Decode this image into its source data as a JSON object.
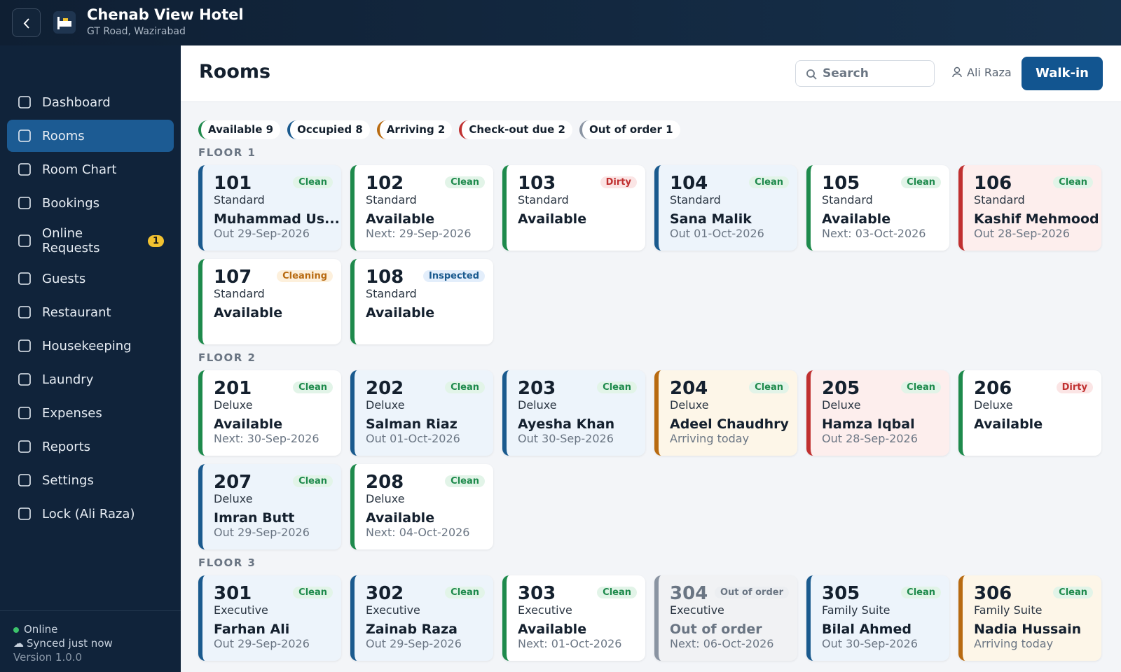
{
  "header": {
    "title": "Chenab View Hotel",
    "subtitle": "GT Road, Wazirabad"
  },
  "sidebar": {
    "nav": [
      {
        "label": "Dashboard"
      },
      {
        "label": "Rooms",
        "active": true
      },
      {
        "label": "Room Chart"
      },
      {
        "label": "Bookings"
      },
      {
        "label": "Online Requests",
        "badge": 1
      },
      {
        "label": "Guests"
      },
      {
        "label": "Restaurant"
      },
      {
        "label": "Housekeeping"
      },
      {
        "label": "Laundry"
      },
      {
        "label": "Expenses"
      },
      {
        "label": "Reports"
      },
      {
        "label": "Settings"
      },
      {
        "label": "Lock (Ali Raza)"
      }
    ],
    "footer": {
      "status": "Online",
      "sync": "Synced just now",
      "version": "Version 1.0.0"
    }
  },
  "topbar": {
    "title": "Rooms",
    "search": "Search",
    "user": "Ali Raza",
    "button": "Walk-in"
  },
  "legend": [
    {
      "label": "Available",
      "count": 9,
      "state": "available"
    },
    {
      "label": "Occupied",
      "count": 8,
      "state": "occupied"
    },
    {
      "label": "Arriving",
      "count": 2,
      "state": "arriving"
    },
    {
      "label": "Check-out due",
      "count": 2,
      "state": "checkout"
    },
    {
      "label": "Out of order",
      "count": 1,
      "state": "ooo"
    }
  ],
  "floors": [
    {
      "title": "FLOOR 1",
      "rooms": [
        {
          "number": "101",
          "type": "Standard",
          "tag": "Clean",
          "tone": "green",
          "state": "occupied",
          "primary": "Muhammad Us...",
          "secondary": "Out 29-Sep-2026"
        },
        {
          "number": "102",
          "type": "Standard",
          "tag": "Clean",
          "tone": "green",
          "state": "available",
          "primary": "Available",
          "secondary": "Next: 29-Sep-2026"
        },
        {
          "number": "103",
          "type": "Standard",
          "tag": "Dirty",
          "tone": "red",
          "state": "available",
          "primary": "Available"
        },
        {
          "number": "104",
          "type": "Standard",
          "tag": "Clean",
          "tone": "green",
          "state": "occupied",
          "primary": "Sana Malik",
          "secondary": "Out 01-Oct-2026"
        },
        {
          "number": "105",
          "type": "Standard",
          "tag": "Clean",
          "tone": "green",
          "state": "available",
          "primary": "Available",
          "secondary": "Next: 03-Oct-2026"
        },
        {
          "number": "106",
          "type": "Standard",
          "tag": "Clean",
          "tone": "green",
          "state": "checkout",
          "primary": "Kashif Mehmood",
          "secondary": "Out 28-Sep-2026"
        },
        {
          "number": "107",
          "type": "Standard",
          "tag": "Cleaning",
          "tone": "orange",
          "state": "available",
          "primary": "Available"
        },
        {
          "number": "108",
          "type": "Standard",
          "tag": "Inspected",
          "tone": "blue",
          "state": "available",
          "primary": "Available"
        }
      ]
    },
    {
      "title": "FLOOR 2",
      "rooms": [
        {
          "number": "201",
          "type": "Deluxe",
          "tag": "Clean",
          "tone": "green",
          "state": "available",
          "primary": "Available",
          "secondary": "Next: 30-Sep-2026"
        },
        {
          "number": "202",
          "type": "Deluxe",
          "tag": "Clean",
          "tone": "green",
          "state": "occupied",
          "primary": "Salman Riaz",
          "secondary": "Out 01-Oct-2026"
        },
        {
          "number": "203",
          "type": "Deluxe",
          "tag": "Clean",
          "tone": "green",
          "state": "occupied",
          "primary": "Ayesha Khan",
          "secondary": "Out 30-Sep-2026"
        },
        {
          "number": "204",
          "type": "Deluxe",
          "tag": "Clean",
          "tone": "green",
          "state": "arriving",
          "primary": "Adeel Chaudhry",
          "secondary": "Arriving today"
        },
        {
          "number": "205",
          "type": "Deluxe",
          "tag": "Clean",
          "tone": "green",
          "state": "checkout",
          "primary": "Hamza Iqbal",
          "secondary": "Out 28-Sep-2026"
        },
        {
          "number": "206",
          "type": "Deluxe",
          "tag": "Dirty",
          "tone": "red",
          "state": "available",
          "primary": "Available"
        },
        {
          "number": "207",
          "type": "Deluxe",
          "tag": "Clean",
          "tone": "green",
          "state": "occupied",
          "primary": "Imran Butt",
          "secondary": "Out 29-Sep-2026"
        },
        {
          "number": "208",
          "type": "Deluxe",
          "tag": "Clean",
          "tone": "green",
          "state": "available",
          "primary": "Available",
          "secondary": "Next: 04-Oct-2026"
        }
      ]
    },
    {
      "title": "FLOOR 3",
      "rooms": [
        {
          "number": "301",
          "type": "Executive",
          "tag": "Clean",
          "tone": "green",
          "state": "occupied",
          "primary": "Farhan Ali",
          "secondary": "Out 29-Sep-2026"
        },
        {
          "number": "302",
          "type": "Executive",
          "tag": "Clean",
          "tone": "green",
          "state": "occupied",
          "primary": "Zainab Raza",
          "secondary": "Out 29-Sep-2026"
        },
        {
          "number": "303",
          "type": "Executive",
          "tag": "Clean",
          "tone": "green",
          "state": "available",
          "primary": "Available",
          "secondary": "Next: 01-Oct-2026"
        },
        {
          "number": "304",
          "type": "Executive",
          "tag": "Out of order",
          "tone": "gray",
          "state": "ooo",
          "primary": "Out of order",
          "secondary": "Next: 06-Oct-2026"
        },
        {
          "number": "305",
          "type": "Family Suite",
          "tag": "Clean",
          "tone": "green",
          "state": "occupied",
          "primary": "Bilal Ahmed",
          "secondary": "Out 30-Sep-2026"
        },
        {
          "number": "306",
          "type": "Family Suite",
          "tag": "Clean",
          "tone": "green",
          "state": "arriving",
          "primary": "Nadia Hussain",
          "secondary": "Arriving today"
        }
      ]
    }
  ]
}
